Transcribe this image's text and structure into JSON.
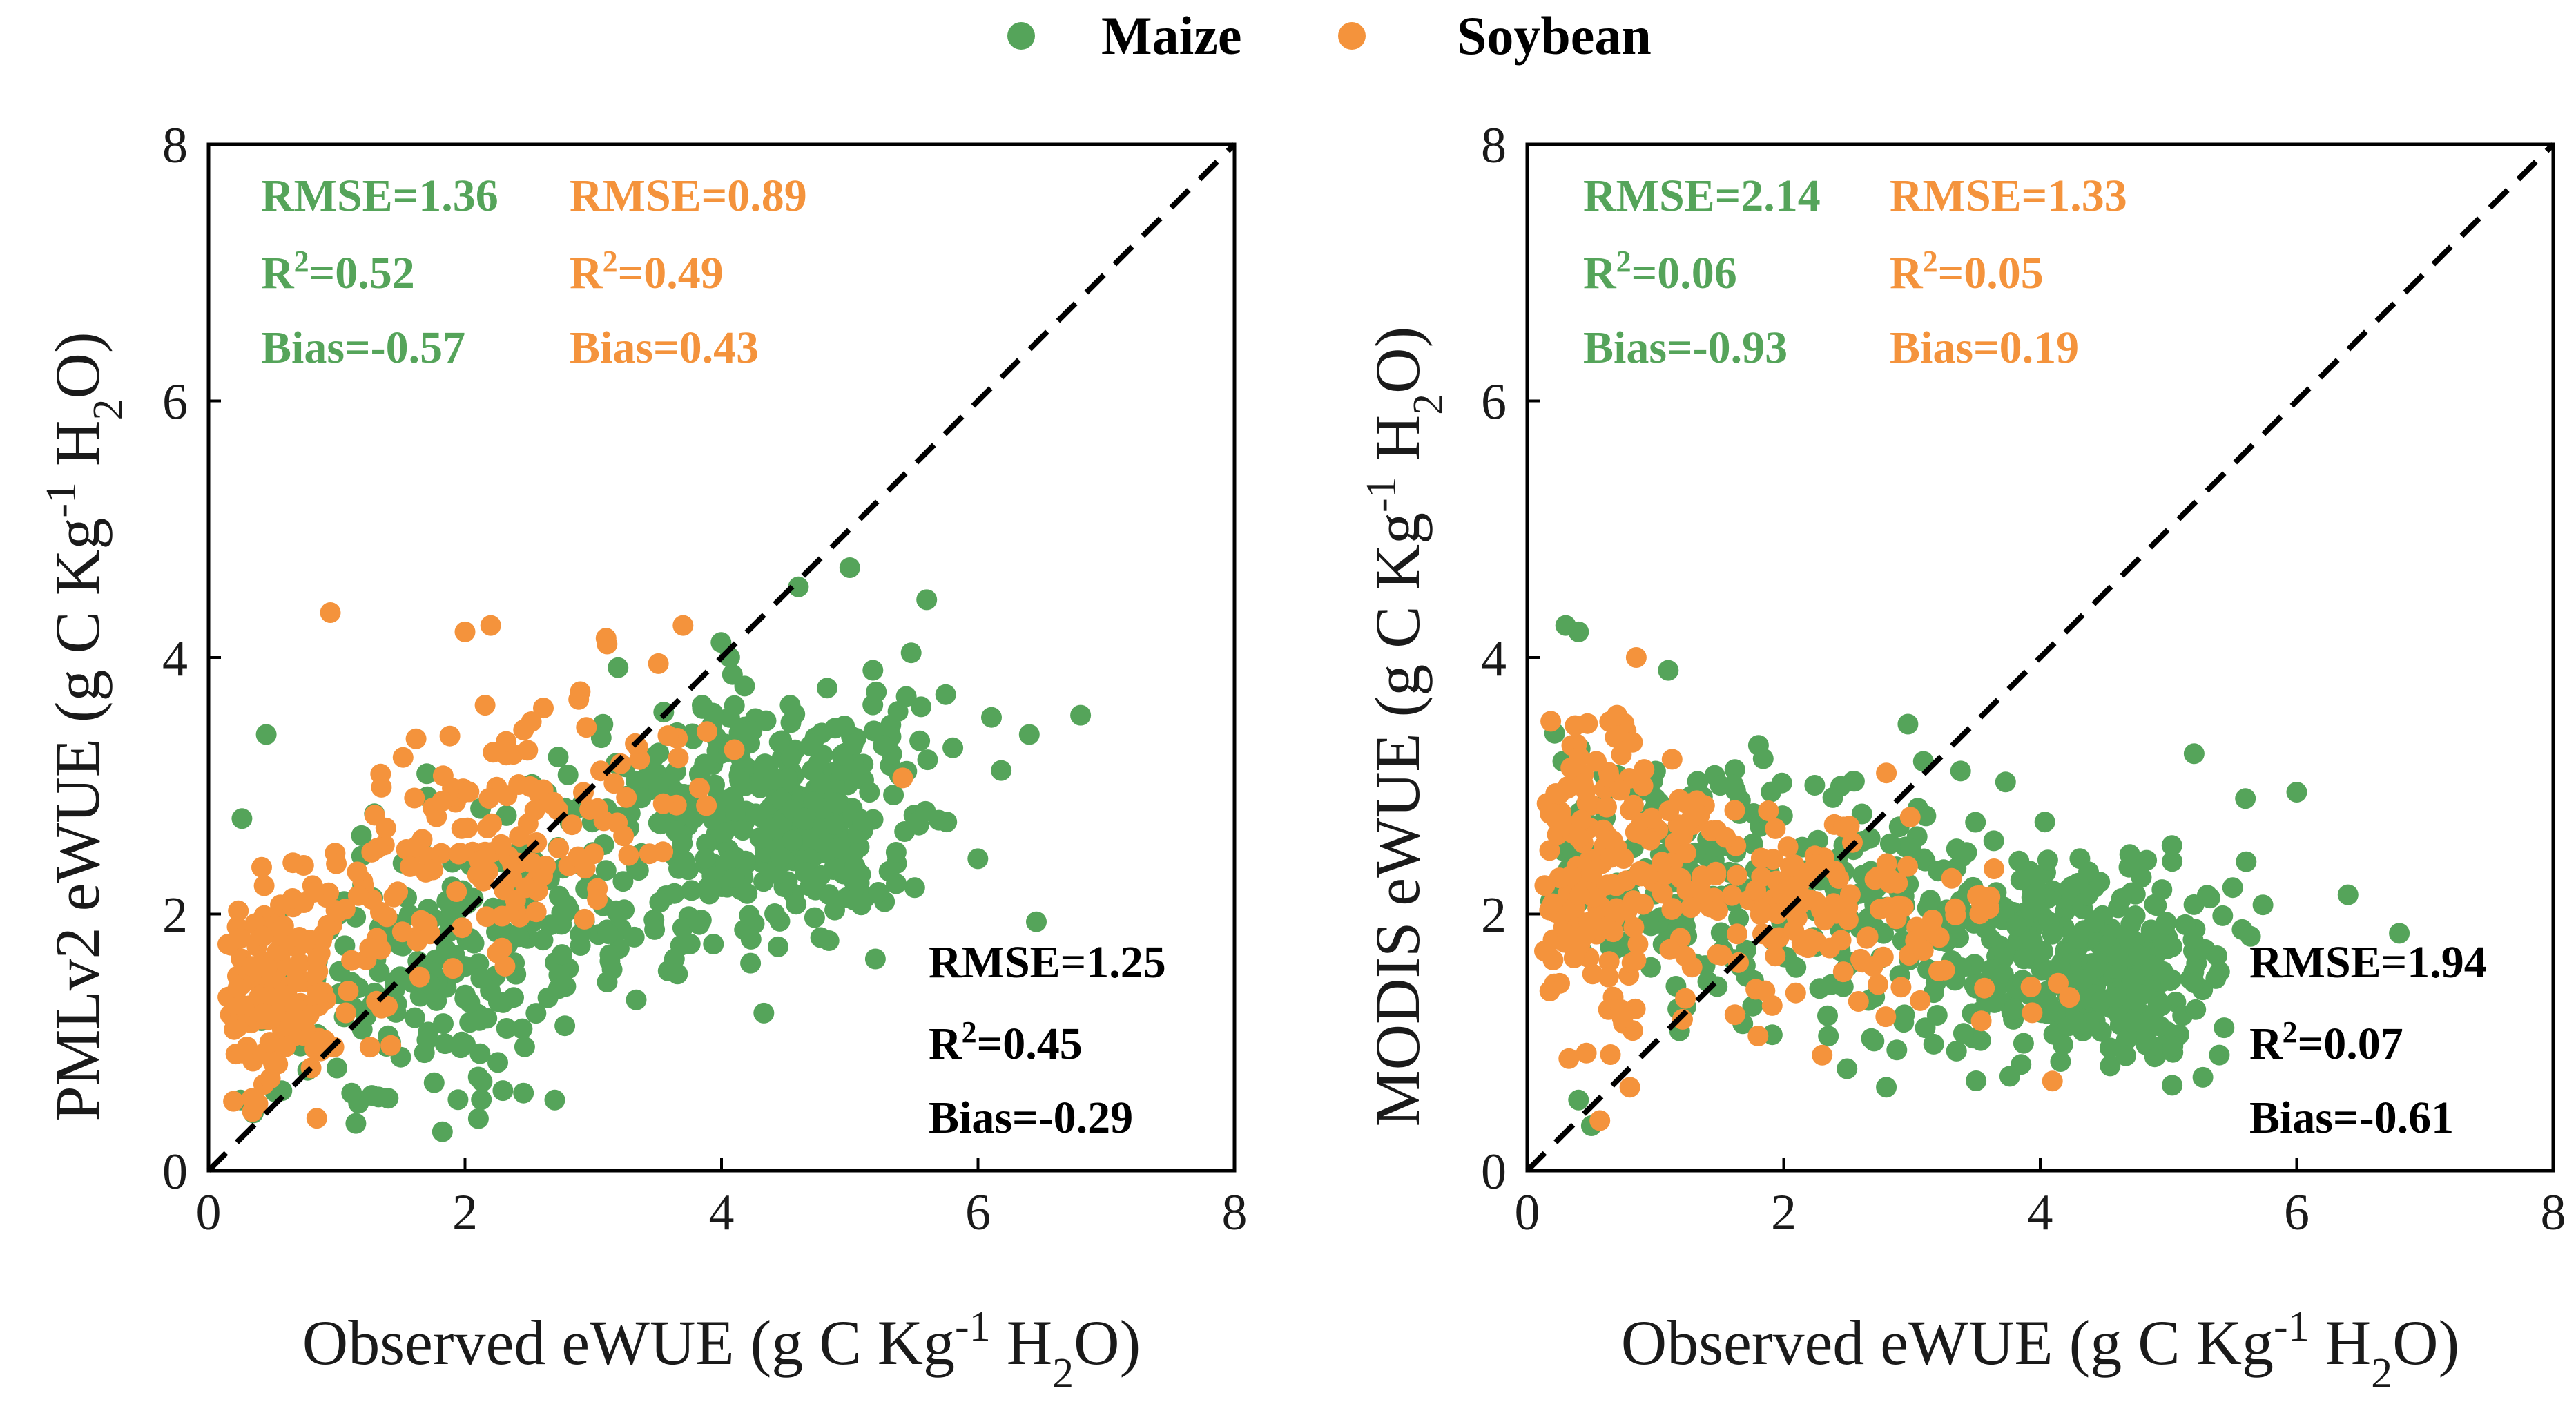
{
  "colors": {
    "maize": "#55A45A",
    "soybean": "#F4933C",
    "overall": "#000000"
  },
  "legend": {
    "maize": "Maize",
    "soybean": "Soybean"
  },
  "chart_data": [
    {
      "type": "scatter",
      "panel": "left",
      "xlabel": {
        "pre": "Observed eWUE (g C Kg",
        "sup": "-1",
        "mid": " H",
        "sub": "2",
        "post": "O)"
      },
      "ylabel": {
        "pre": "PMLv2 eWUE (g C Kg",
        "sup": "-1",
        "mid": " H",
        "sub": "2",
        "post": "O)"
      },
      "xlim": [
        0,
        8
      ],
      "ylim": [
        0,
        8
      ],
      "xticks": [
        "0",
        "2",
        "4",
        "6",
        "8"
      ],
      "yticks": [
        "0",
        "2",
        "4",
        "6",
        "8"
      ],
      "one_to_one_line": true,
      "stats": {
        "maize": {
          "rmse": "RMSE=1.36",
          "r2_label": "R",
          "r2_sup": "2",
          "r2_value": "=0.52",
          "bias": "Bias=-0.57"
        },
        "soybean": {
          "rmse": "RMSE=0.89",
          "r2_label": "R",
          "r2_sup": "2",
          "r2_value": "=0.49",
          "bias": "Bias=0.43"
        },
        "overall": {
          "rmse": "RMSE=1.25",
          "r2_label": "R",
          "r2_sup": "2",
          "r2_value": "=0.45",
          "bias": "Bias=-0.29"
        }
      },
      "series": [
        {
          "name": "Maize",
          "seed": 11,
          "n": 620,
          "clusters": [
            {
              "w": 0.52,
              "cx": 4.5,
              "sx": 0.55,
              "cy": 2.8,
              "sy": 0.45
            },
            {
              "w": 0.48,
              "cx": 2.4,
              "sx": 1.2,
              "cy": 1.9,
              "sy": 0.6,
              "slope": 0.42,
              "x0": 2.4
            }
          ],
          "points": [
            [
              6.8,
              3.55
            ],
            [
              6.4,
              3.4
            ],
            [
              5.0,
              4.7
            ],
            [
              4.6,
              4.55
            ],
            [
              0.35,
              0.45
            ],
            [
              0.25,
              0.55
            ],
            [
              2.7,
              0.55
            ],
            [
              5.2,
              1.65
            ],
            [
              5.6,
              4.45
            ],
            [
              0.45,
              3.4
            ]
          ]
        },
        {
          "name": "Soybean",
          "seed": 23,
          "n": 330,
          "clusters": [
            {
              "w": 0.42,
              "cx": 0.55,
              "sx": 0.35,
              "cy": 1.35,
              "sy": 0.42
            },
            {
              "w": 0.58,
              "cx": 2.0,
              "sx": 1.0,
              "cy": 2.4,
              "sy": 0.45,
              "slope": 0.38,
              "x0": 2.0
            }
          ],
          "points": [
            [
              0.95,
              4.35
            ],
            [
              2.0,
              4.2
            ],
            [
              2.2,
              4.25
            ],
            [
              3.7,
              4.25
            ],
            [
              3.1,
              4.15
            ],
            [
              0.2,
              1.1
            ],
            [
              0.8,
              0.8
            ]
          ]
        }
      ]
    },
    {
      "type": "scatter",
      "panel": "right",
      "xlabel": {
        "pre": "Observed eWUE (g C Kg",
        "sup": "-1",
        "mid": " H",
        "sub": "2",
        "post": "O)"
      },
      "ylabel": {
        "pre": "MODIS eWUE (g C Kg",
        "sup": "-1",
        "mid": " H",
        "sub": "2",
        "post": "O)"
      },
      "xlim": [
        0,
        8
      ],
      "ylim": [
        0,
        8
      ],
      "xticks": [
        "0",
        "2",
        "4",
        "6",
        "8"
      ],
      "yticks": [
        "0",
        "2",
        "4",
        "6",
        "8"
      ],
      "one_to_one_line": true,
      "stats": {
        "maize": {
          "rmse": "RMSE=2.14",
          "r2_label": "R",
          "r2_sup": "2",
          "r2_value": "=0.06",
          "bias": "Bias=-0.93"
        },
        "soybean": {
          "rmse": "RMSE=1.33",
          "r2_label": "R",
          "r2_sup": "2",
          "r2_value": "=0.05",
          "bias": "Bias=0.19"
        },
        "overall": {
          "rmse": "RMSE=1.94",
          "r2_label": "R",
          "r2_sup": "2",
          "r2_value": "=0.07",
          "bias": "Bias=-0.61"
        }
      },
      "series": [
        {
          "name": "Maize",
          "seed": 37,
          "n": 620,
          "clusters": [
            {
              "w": 0.45,
              "cx": 4.4,
              "sx": 0.55,
              "cy": 1.6,
              "sy": 0.35
            },
            {
              "w": 0.55,
              "cx": 2.2,
              "sx": 1.35,
              "cy": 2.1,
              "sy": 0.5,
              "slope": -0.18,
              "x0": 2.2
            }
          ],
          "points": [
            [
              0.3,
              4.25
            ],
            [
              0.4,
              4.2
            ],
            [
              1.1,
              3.9
            ],
            [
              5.2,
              3.25
            ],
            [
              6.0,
              2.95
            ],
            [
              6.8,
              1.85
            ],
            [
              0.5,
              0.35
            ],
            [
              0.4,
              0.55
            ],
            [
              2.8,
              0.65
            ],
            [
              3.5,
              0.7
            ],
            [
              5.6,
              2.9
            ],
            [
              6.4,
              2.15
            ]
          ]
        },
        {
          "name": "Soybean",
          "seed": 51,
          "n": 330,
          "clusters": [
            {
              "w": 0.5,
              "cx": 0.55,
              "sx": 0.35,
              "cy": 2.3,
              "sy": 0.6
            },
            {
              "w": 0.5,
              "cx": 2.3,
              "sx": 0.8,
              "cy": 2.0,
              "sy": 0.38,
              "slope": -0.2,
              "x0": 2.3
            }
          ],
          "points": [
            [
              0.85,
              4.0
            ],
            [
              0.7,
              3.55
            ],
            [
              0.8,
              0.65
            ],
            [
              2.8,
              3.1
            ],
            [
              1.8,
              1.05
            ],
            [
              2.3,
              0.9
            ]
          ]
        }
      ]
    }
  ]
}
